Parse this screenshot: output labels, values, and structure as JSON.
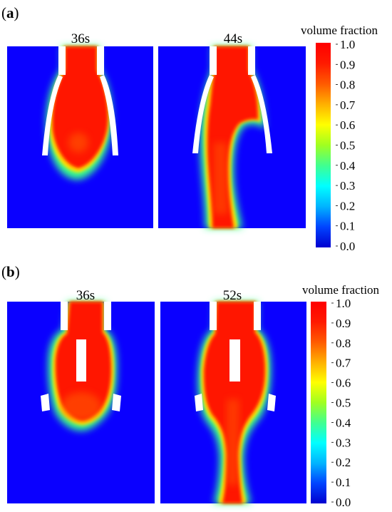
{
  "figure": {
    "panels": [
      {
        "id": "a",
        "label": {
          "open": "(",
          "letter": "a",
          "close": ")"
        },
        "frames": [
          {
            "time": "36s"
          },
          {
            "time": "44s"
          }
        ],
        "colorbar": {
          "title": "volume fraction",
          "ticks": [
            "1.0",
            "0.9",
            "0.8",
            "0.7",
            "0.6",
            "0.5",
            "0.4",
            "0.3",
            "0.2",
            "0.1",
            "0.0"
          ]
        }
      },
      {
        "id": "b",
        "label": {
          "open": "(",
          "letter": "b",
          "close": ")"
        },
        "frames": [
          {
            "time": "36s"
          },
          {
            "time": "52s"
          }
        ],
        "colorbar": {
          "title": "volume fraction",
          "ticks": [
            "1.0",
            "0.9",
            "0.8",
            "0.7",
            "0.6",
            "0.5",
            "0.4",
            "0.3",
            "0.2",
            "0.1",
            "0.0"
          ]
        }
      }
    ],
    "colormap": {
      "name": "jet",
      "range": [
        0.0,
        1.0
      ],
      "stops": [
        "#0000d0",
        "#0044ff",
        "#00b4ff",
        "#00ffff",
        "#40ff90",
        "#a0ff20",
        "#ffff00",
        "#ffb000",
        "#ff5a00",
        "#ff1a00",
        "#ff0000"
      ]
    },
    "colors": {
      "background": "#0a00ff",
      "liquid": "#ff1400",
      "wall": "#ffffff"
    }
  }
}
